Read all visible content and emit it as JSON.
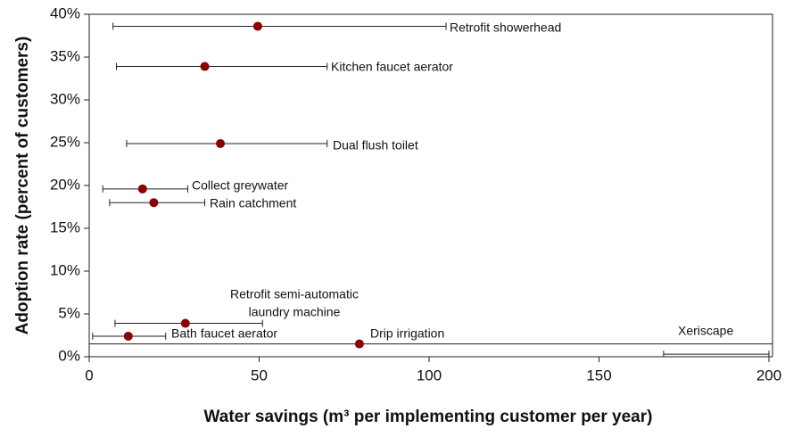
{
  "chart_data": {
    "type": "scatter",
    "x_label": "Water savings (m³ per implementing customer per year)",
    "y_label": "Adoption rate (percent of customers)",
    "xlim": [
      0,
      200
    ],
    "xticks": [
      0,
      50,
      100,
      150,
      200
    ],
    "ylim": [
      0,
      40
    ],
    "yticks": [
      {
        "value": 0,
        "label": "0%"
      },
      {
        "value": 5,
        "label": "5%"
      },
      {
        "value": 10,
        "label": "10%"
      },
      {
        "value": 15,
        "label": "15%"
      },
      {
        "value": 20,
        "label": "20%"
      },
      {
        "value": 25,
        "label": "25%"
      },
      {
        "value": 30,
        "label": "30%"
      },
      {
        "value": 35,
        "label": "35%"
      },
      {
        "value": 40,
        "label": "40%"
      }
    ],
    "color": "#8b0000",
    "labels": [
      [
        "Retrofit showerhead"
      ],
      [
        "Kitchen faucet aerator"
      ],
      [
        "Dual flush toilet"
      ],
      [
        "Collect greywater"
      ],
      [
        "Rain catchment"
      ],
      [
        "Retrofit semi-automatic",
        "laundry machine"
      ],
      [
        "Bath faucet aerator"
      ],
      [
        "Drip irrigation"
      ],
      [
        "Xeriscape"
      ]
    ],
    "x": [
      49.6,
      34,
      38.6,
      15.7,
      19,
      28.3,
      11.5,
      79.5,
      null
    ],
    "y": [
      38.6,
      33.9,
      24.9,
      19.6,
      18,
      3.9,
      2.4,
      1.5,
      0.3
    ],
    "x_low": [
      7,
      8,
      11,
      4,
      6,
      7.6,
      1,
      -10,
      169
    ],
    "x_high": [
      105,
      70,
      70,
      29,
      34,
      51,
      22.5,
      210,
      200
    ]
  }
}
